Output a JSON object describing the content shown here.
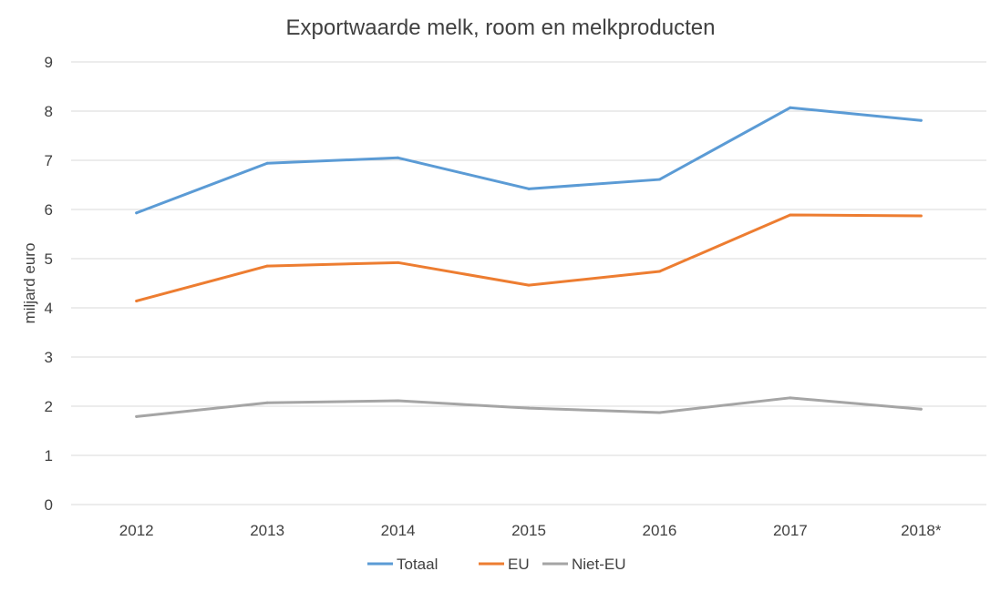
{
  "chart_data": {
    "type": "line",
    "title": "Exportwaarde melk, room en melkproducten",
    "xlabel": "",
    "ylabel": "miljard euro",
    "categories": [
      "2012",
      "2013",
      "2014",
      "2015",
      "2016",
      "2017",
      "2018*"
    ],
    "ylim": [
      0,
      9
    ],
    "yticks": [
      0,
      1,
      2,
      3,
      4,
      5,
      6,
      7,
      8,
      9
    ],
    "grid": true,
    "legend_position": "bottom",
    "series": [
      {
        "name": "Totaal",
        "color": "#5b9bd5",
        "values": [
          5.93,
          6.94,
          7.05,
          6.42,
          6.61,
          8.07,
          7.81
        ]
      },
      {
        "name": "EU",
        "color": "#ed7d31",
        "values": [
          4.14,
          4.85,
          4.92,
          4.46,
          4.74,
          5.89,
          5.87
        ]
      },
      {
        "name": "Niet-EU",
        "color": "#a5a5a5",
        "values": [
          1.79,
          2.07,
          2.11,
          1.96,
          1.87,
          2.17,
          1.94
        ]
      }
    ]
  }
}
